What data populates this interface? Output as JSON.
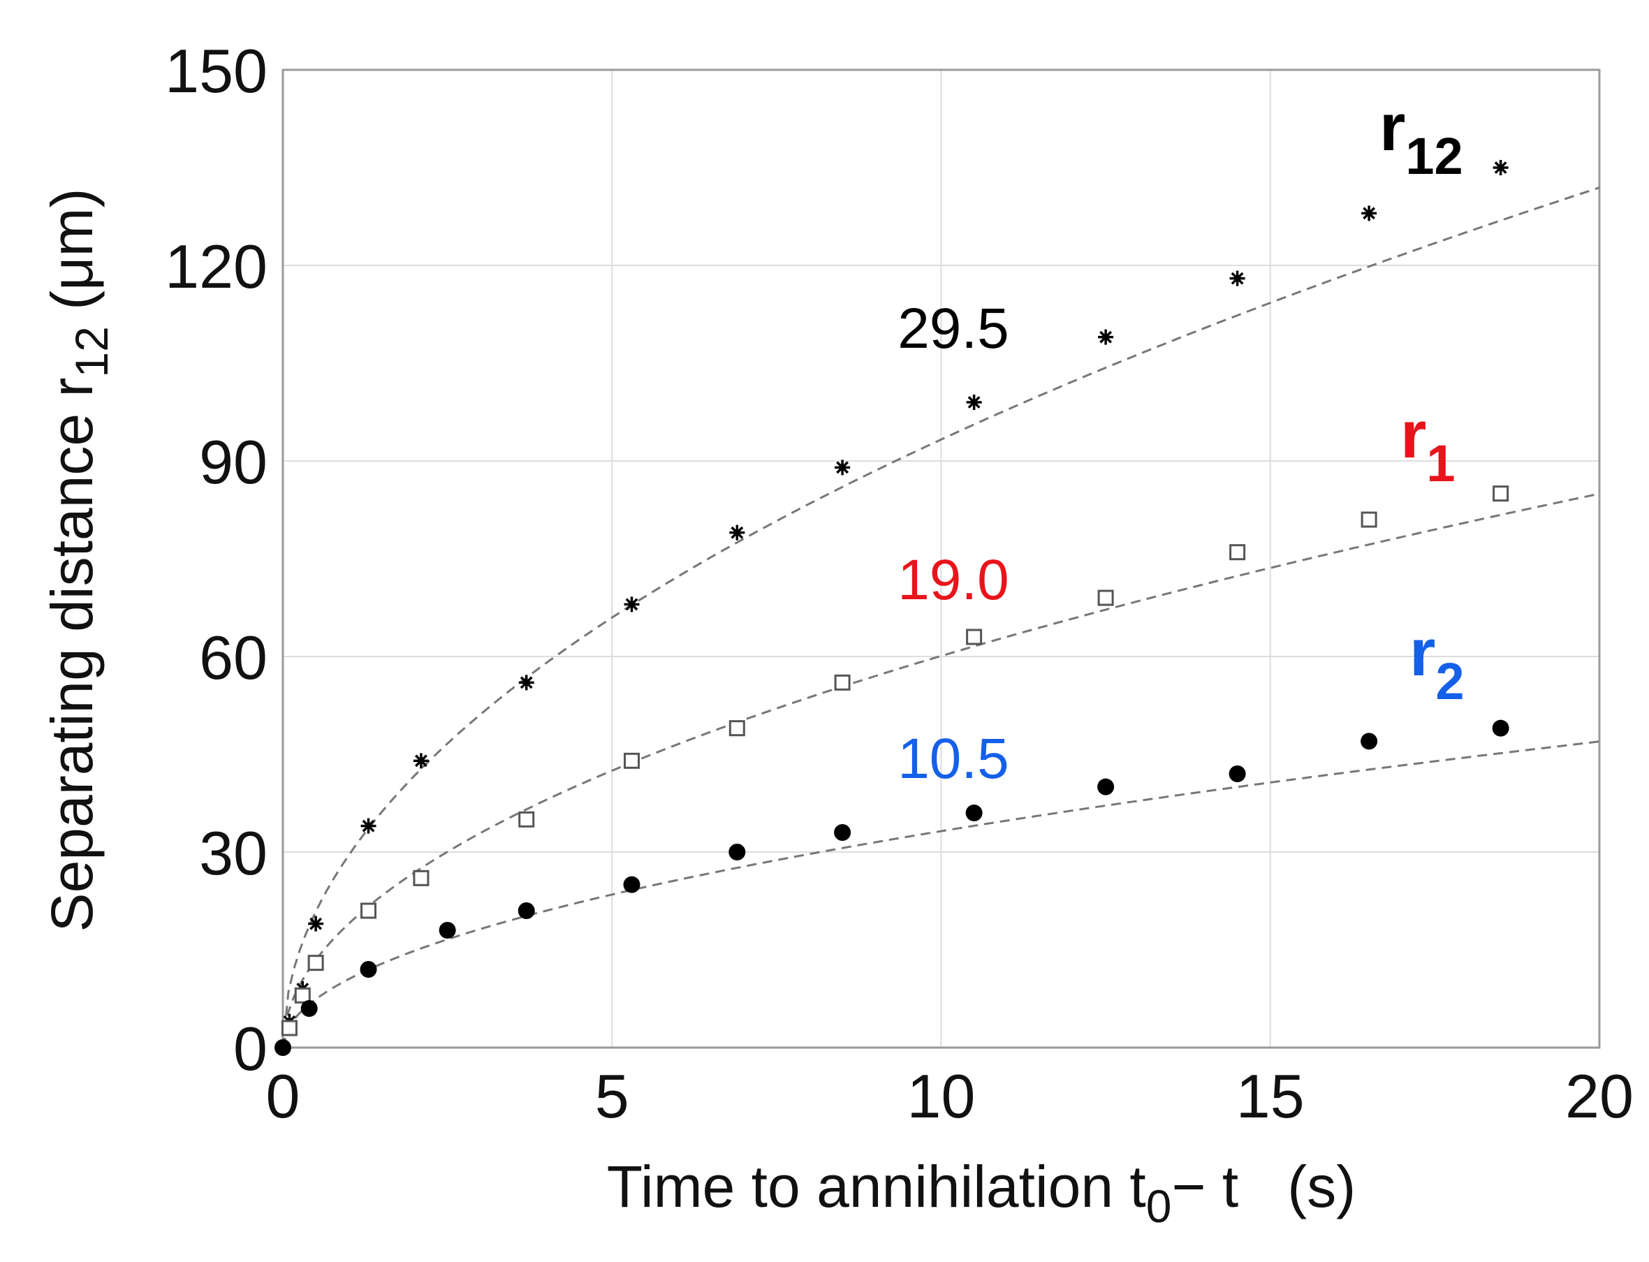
{
  "chart_data": {
    "type": "scatter",
    "title": "",
    "xlabel": "Time to annihilation t",
    "xlabel_subscript": "0",
    "xlabel_suffix": "− t   (s)",
    "ylabel": "Separating distance r",
    "ylabel_subscript": "12",
    "ylabel_suffix": " (μm)",
    "xlim": [
      0,
      20
    ],
    "ylim": [
      0,
      150
    ],
    "xticks": [
      0,
      5,
      10,
      15,
      20
    ],
    "yticks": [
      0,
      30,
      60,
      90,
      120,
      150
    ],
    "x_tick_labels": [
      "0",
      "5",
      "10",
      "15",
      "20"
    ],
    "y_tick_labels": [
      "0",
      "30",
      "60",
      "90",
      "120",
      "150"
    ],
    "grid": true,
    "series": [
      {
        "name": "r12",
        "label_main": "r",
        "label_sub": "12",
        "marker": "asterisk",
        "color": "#000000",
        "fit_coefficient": 29.5,
        "fit_label": "29.5",
        "fit_label_color": "#000000",
        "x": [
          0.1,
          0.3,
          0.5,
          1.3,
          2.1,
          3.7,
          5.3,
          6.9,
          8.5,
          10.5,
          12.5,
          14.5,
          16.5,
          18.5
        ],
        "y": [
          4,
          9,
          19,
          34,
          44,
          56,
          68,
          79,
          89,
          99,
          109,
          118,
          128,
          135
        ]
      },
      {
        "name": "r1",
        "label_main": "r",
        "label_sub": "1",
        "marker": "open-square",
        "color": "#555555",
        "fit_coefficient": 19.0,
        "fit_label": "19.0",
        "fit_label_color": "#e8141c",
        "name_color": "#e8141c",
        "x": [
          0.1,
          0.3,
          0.5,
          1.3,
          2.1,
          3.7,
          5.3,
          6.9,
          8.5,
          10.5,
          12.5,
          14.5,
          16.5,
          18.5
        ],
        "y": [
          3,
          8,
          13,
          21,
          26,
          35,
          44,
          49,
          56,
          63,
          69,
          76,
          81,
          85
        ]
      },
      {
        "name": "r2",
        "label_main": "r",
        "label_sub": "2",
        "marker": "filled-circle",
        "color": "#000000",
        "fit_coefficient": 10.5,
        "fit_label": "10.5",
        "fit_label_color": "#1560e8",
        "name_color": "#1560e8",
        "x": [
          0,
          0.4,
          1.3,
          2.5,
          3.7,
          5.3,
          6.9,
          8.5,
          10.5,
          12.5,
          14.5,
          16.5,
          18.5
        ],
        "y": [
          0,
          6,
          12,
          18,
          21,
          25,
          30,
          33,
          36,
          40,
          42,
          47,
          49
        ]
      }
    ]
  }
}
